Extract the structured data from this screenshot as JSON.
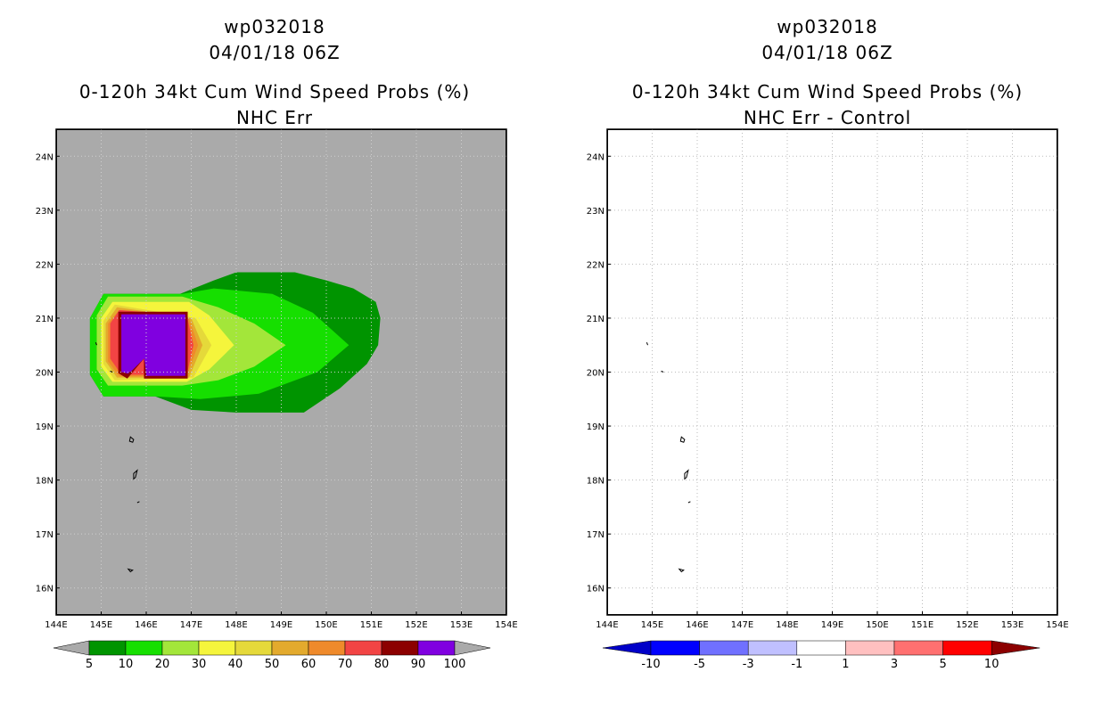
{
  "panels": [
    {
      "storm": "wp032018",
      "datetime": "04/01/18 06Z",
      "title": "0-120h 34kt Cum Wind Speed Probs (%)",
      "subtitle": "NHC Err"
    },
    {
      "storm": "wp032018",
      "datetime": "04/01/18 06Z",
      "title": "0-120h 34kt Cum Wind Speed Probs (%)",
      "subtitle": "NHC Err - Control"
    }
  ],
  "chart_data": [
    {
      "type": "heatmap",
      "title": "0-120h 34kt Cum Wind Speed Probs (%)",
      "subtitle": "NHC Err",
      "xlim": [
        144,
        154
      ],
      "ylim": [
        15.5,
        24.5
      ],
      "x_ticks": [
        144,
        145,
        146,
        147,
        148,
        149,
        150,
        151,
        152,
        153,
        154
      ],
      "x_tick_labels": [
        "144E",
        "145E",
        "146E",
        "147E",
        "148E",
        "149E",
        "150E",
        "151E",
        "152E",
        "153E",
        "154E"
      ],
      "y_ticks": [
        16,
        17,
        18,
        19,
        20,
        21,
        22,
        23,
        24
      ],
      "y_tick_labels": [
        "16N",
        "17N",
        "18N",
        "19N",
        "20N",
        "21N",
        "22N",
        "23N",
        "24N"
      ],
      "grid": "dotted",
      "levels": [
        5,
        10,
        20,
        30,
        40,
        50,
        60,
        70,
        80,
        90,
        100
      ],
      "colors": [
        "#009400",
        "#16df00",
        "#a3e63a",
        "#f5f53c",
        "#e5d93a",
        "#e3aa2d",
        "#ef8a2b",
        "#f24444",
        "#8c0000",
        "#8000e0"
      ],
      "contours": [
        {
          "level": 5,
          "points": [
            [
              145.05,
              21.45
            ],
            [
              146.75,
              21.45
            ],
            [
              147.5,
              21.7
            ],
            [
              148,
              21.85
            ],
            [
              149.3,
              21.85
            ],
            [
              150,
              21.7
            ],
            [
              150.6,
              21.55
            ],
            [
              151.1,
              21.3
            ],
            [
              151.2,
              21.0
            ],
            [
              151.15,
              20.5
            ],
            [
              150.9,
              20.15
            ],
            [
              150.3,
              19.7
            ],
            [
              149.5,
              19.25
            ],
            [
              148,
              19.25
            ],
            [
              147,
              19.3
            ],
            [
              146.2,
              19.55
            ],
            [
              145.05,
              19.55
            ],
            [
              144.75,
              19.95
            ],
            [
              144.75,
              21.0
            ]
          ]
        },
        {
          "level": 10,
          "points": [
            [
              145.05,
              21.45
            ],
            [
              146.8,
              21.45
            ],
            [
              147.5,
              21.55
            ],
            [
              148.8,
              21.45
            ],
            [
              149.7,
              21.1
            ],
            [
              150.5,
              20.5
            ],
            [
              149.8,
              20.0
            ],
            [
              148.5,
              19.6
            ],
            [
              147.2,
              19.5
            ],
            [
              146.2,
              19.55
            ],
            [
              145.05,
              19.55
            ],
            [
              144.75,
              19.95
            ],
            [
              144.75,
              21.0
            ]
          ]
        },
        {
          "level": 20,
          "points": [
            [
              145.15,
              21.4
            ],
            [
              146.8,
              21.4
            ],
            [
              147.6,
              21.2
            ],
            [
              148.4,
              20.9
            ],
            [
              149.1,
              20.5
            ],
            [
              148.4,
              20.1
            ],
            [
              147.6,
              19.85
            ],
            [
              146.8,
              19.75
            ],
            [
              145.15,
              19.75
            ],
            [
              144.9,
              20.05
            ],
            [
              144.9,
              21.05
            ]
          ]
        },
        {
          "level": 30,
          "points": [
            [
              145.25,
              21.3
            ],
            [
              146.95,
              21.3
            ],
            [
              147.4,
              21.05
            ],
            [
              147.95,
              20.5
            ],
            [
              147.4,
              20.05
            ],
            [
              146.9,
              19.82
            ],
            [
              145.25,
              19.82
            ],
            [
              145.0,
              20.1
            ],
            [
              145.0,
              21.0
            ]
          ]
        },
        {
          "level": 40,
          "points": [
            [
              145.3,
              21.25
            ],
            [
              147.1,
              21.0
            ],
            [
              147.45,
              20.5
            ],
            [
              147.05,
              19.9
            ],
            [
              145.3,
              19.85
            ],
            [
              145.05,
              20.15
            ],
            [
              145.05,
              20.95
            ]
          ]
        },
        {
          "level": 50,
          "points": [
            [
              145.35,
              21.2
            ],
            [
              147.0,
              21.0
            ],
            [
              147.25,
              20.5
            ],
            [
              146.95,
              19.9
            ],
            [
              145.35,
              19.9
            ],
            [
              145.1,
              20.2
            ],
            [
              145.1,
              20.9
            ]
          ]
        },
        {
          "level": 60,
          "points": [
            [
              145.4,
              21.15
            ],
            [
              146.95,
              21.0
            ],
            [
              147.15,
              20.5
            ],
            [
              146.9,
              19.92
            ],
            [
              145.4,
              19.92
            ],
            [
              145.15,
              20.2
            ],
            [
              145.15,
              20.9
            ]
          ]
        },
        {
          "level": 70,
          "points": [
            [
              145.4,
              21.15
            ],
            [
              146.9,
              21.05
            ],
            [
              147.05,
              20.5
            ],
            [
              146.9,
              19.95
            ],
            [
              145.45,
              19.95
            ],
            [
              145.2,
              20.25
            ],
            [
              145.2,
              20.9
            ]
          ]
        },
        {
          "level": 80,
          "points": [
            [
              145.38,
              21.12
            ],
            [
              146.92,
              21.12
            ],
            [
              146.92,
              19.88
            ],
            [
              145.95,
              19.88
            ],
            [
              145.95,
              20.25
            ],
            [
              145.58,
              19.88
            ],
            [
              145.38,
              19.98
            ]
          ]
        },
        {
          "level": 90,
          "points": [
            [
              145.45,
              21.07
            ],
            [
              146.87,
              21.07
            ],
            [
              146.87,
              19.93
            ],
            [
              146.0,
              19.93
            ],
            [
              145.95,
              20.35
            ],
            [
              145.6,
              19.97
            ],
            [
              145.45,
              20.0
            ]
          ]
        },
        {
          "level": 100,
          "points": [
            [
              145.45,
              21.07
            ],
            [
              146.85,
              21.07
            ],
            [
              146.85,
              19.95
            ],
            [
              146.05,
              19.95
            ],
            [
              145.95,
              20.25
            ],
            [
              145.65,
              20.0
            ],
            [
              145.45,
              20.05
            ]
          ]
        }
      ]
    },
    {
      "type": "heatmap",
      "title": "0-120h 34kt Cum Wind Speed Probs (%)",
      "subtitle": "NHC Err - Control",
      "xlim": [
        144,
        154
      ],
      "ylim": [
        15.5,
        24.5
      ],
      "x_ticks": [
        144,
        145,
        146,
        147,
        148,
        149,
        150,
        151,
        152,
        153,
        154
      ],
      "x_tick_labels": [
        "144E",
        "145E",
        "146E",
        "147E",
        "148E",
        "149E",
        "150E",
        "151E",
        "152E",
        "153E",
        "154E"
      ],
      "y_ticks": [
        16,
        17,
        18,
        19,
        20,
        21,
        22,
        23,
        24
      ],
      "y_tick_labels": [
        "16N",
        "17N",
        "18N",
        "19N",
        "20N",
        "21N",
        "22N",
        "23N",
        "24N"
      ],
      "grid": "dotted",
      "levels": [
        -10,
        -5,
        -3,
        -1,
        1,
        3,
        5,
        10
      ],
      "colors": [
        "#0000c8",
        "#0000ff",
        "#7070ff",
        "#c0c0ff",
        "#ffffff",
        "#ffc0c0",
        "#ff7070",
        "#ff0000",
        "#8c0000"
      ],
      "contours": []
    }
  ],
  "islands": [
    [
      [
        145.65,
        18.8
      ],
      [
        145.72,
        18.75
      ],
      [
        145.7,
        18.7
      ],
      [
        145.63,
        18.72
      ]
    ],
    [
      [
        145.72,
        18.12
      ],
      [
        145.8,
        18.18
      ],
      [
        145.76,
        18.05
      ],
      [
        145.72,
        18.02
      ]
    ],
    [
      [
        145.8,
        17.58
      ],
      [
        145.85,
        17.6
      ]
    ],
    [
      [
        145.6,
        16.35
      ],
      [
        145.7,
        16.33
      ],
      [
        145.65,
        16.3
      ]
    ],
    [
      [
        144.9,
        20.5
      ],
      [
        144.88,
        20.55
      ]
    ],
    [
      [
        145.2,
        20.02
      ],
      [
        145.25,
        20.0
      ]
    ]
  ],
  "colorbars": [
    {
      "labels": [
        "5",
        "10",
        "20",
        "30",
        "40",
        "50",
        "60",
        "70",
        "80",
        "90",
        "100"
      ]
    },
    {
      "labels": [
        "-10",
        "-5",
        "-3",
        "-1",
        "1",
        "3",
        "5",
        "10"
      ]
    }
  ]
}
